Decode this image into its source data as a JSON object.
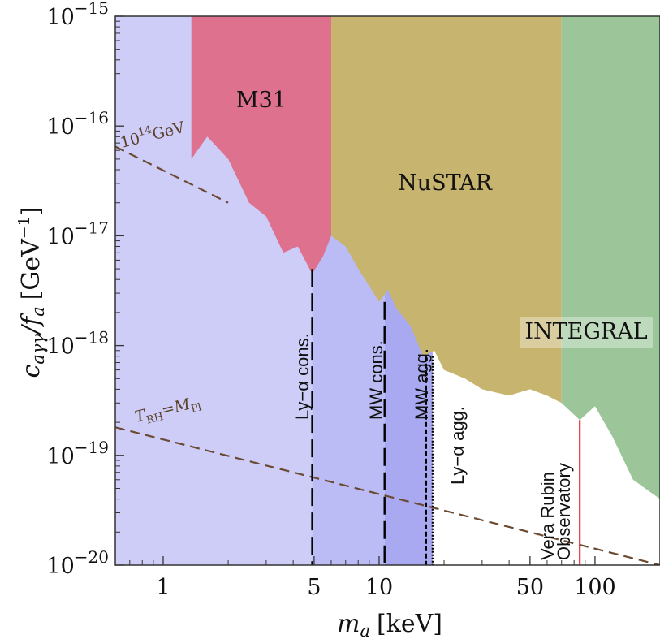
{
  "chart_data": {
    "type": "area",
    "title": "",
    "xlabel_var": "m",
    "xlabel_sub": "a",
    "xlabel_unit": "[keV]",
    "ylabel_var": "c",
    "ylabel_sub": "aγγ",
    "ylabel_den": "/f",
    "ylabel_den_sub": "a",
    "ylabel_unit": "[GeV",
    "ylabel_unit_exp": "−1",
    "ylabel_unit_close": "]",
    "xscale": "log",
    "yscale": "log",
    "xlim": [
      0.6,
      200
    ],
    "ylim": [
      1e-20,
      1e-15
    ],
    "grid": false,
    "x_ticks": [
      {
        "value": 1,
        "label": "1"
      },
      {
        "value": 5,
        "label": "5"
      },
      {
        "value": 10,
        "label": "10"
      },
      {
        "value": 50,
        "label": "50"
      },
      {
        "value": 100,
        "label": "100"
      }
    ],
    "y_ticks": [
      {
        "value": 1e-15,
        "base": "10",
        "exp": "−15"
      },
      {
        "value": 1e-16,
        "base": "10",
        "exp": "−16"
      },
      {
        "value": 1e-17,
        "base": "10",
        "exp": "−17"
      },
      {
        "value": 1e-18,
        "base": "10",
        "exp": "−18"
      },
      {
        "value": 1e-19,
        "base": "10",
        "exp": "−19"
      },
      {
        "value": 1e-20,
        "base": "10",
        "exp": "−20"
      }
    ],
    "regions": [
      {
        "name": "light-blue",
        "color": "#cdcdf8",
        "x_range": [
          0.6,
          4.9
        ]
      },
      {
        "name": "blue-band",
        "color": "#bbbbf6",
        "x_range": [
          4.9,
          10.6
        ]
      },
      {
        "name": "blue-band-dark",
        "color": "#a9a9f2",
        "x_range": [
          10.6,
          17.7
        ]
      },
      {
        "label": "M31",
        "color": "#dd718e",
        "boundary": [
          [
            1.35,
            1e-15
          ],
          [
            1.35,
            5e-17
          ],
          [
            1.6,
            8e-17
          ],
          [
            2.0,
            5e-17
          ],
          [
            2.5,
            2e-17
          ],
          [
            3.0,
            1.5e-17
          ],
          [
            3.6,
            7e-18
          ],
          [
            4.2,
            8e-18
          ],
          [
            4.9,
            4.5e-18
          ],
          [
            5.5,
            6.5e-18
          ],
          [
            6.0,
            1e-17
          ],
          [
            6.0,
            1e-15
          ]
        ]
      },
      {
        "label": "NuSTAR",
        "color": "#c7b46f",
        "boundary": [
          [
            6.0,
            1e-15
          ],
          [
            6.0,
            1e-17
          ],
          [
            7.0,
            8e-18
          ],
          [
            8.0,
            5e-18
          ],
          [
            9.0,
            3.5e-18
          ],
          [
            10.0,
            2.5e-18
          ],
          [
            11.0,
            3.2e-18
          ],
          [
            12.0,
            2.2e-18
          ],
          [
            14.0,
            1.5e-18
          ],
          [
            16.0,
            8e-19
          ],
          [
            18.0,
            9e-19
          ],
          [
            20.0,
            6e-19
          ],
          [
            25.0,
            5e-19
          ],
          [
            30.0,
            4e-19
          ],
          [
            40.0,
            3.5e-19
          ],
          [
            50.0,
            4e-19
          ],
          [
            60.0,
            3.5e-19
          ],
          [
            70.0,
            3e-19
          ],
          [
            70.0,
            1e-15
          ]
        ]
      },
      {
        "label": "INTEGRAL",
        "color": "#9cc69a",
        "boundary": [
          [
            70.0,
            1e-15
          ],
          [
            70.0,
            3e-19
          ],
          [
            85.0,
            2.1e-19
          ],
          [
            100.0,
            2.8e-19
          ],
          [
            120.0,
            1.5e-19
          ],
          [
            150.0,
            6e-20
          ],
          [
            200.0,
            4e-20
          ],
          [
            200.0,
            1e-15
          ]
        ]
      }
    ],
    "vertical_lines": [
      {
        "label": "Ly−α cons.",
        "x": 4.9,
        "y_top": 5e-18,
        "style": "long-dash",
        "color": "#000000"
      },
      {
        "label": "MW cons.",
        "x": 10.6,
        "y_top": 2.5e-18,
        "style": "long-dash",
        "color": "#000000"
      },
      {
        "label": "MW agg.",
        "x": 16.5,
        "y_top": 8e-19,
        "style": "short-dash",
        "color": "#000000"
      },
      {
        "label": "Ly−α agg.",
        "x": 17.7,
        "y_top": 8e-19,
        "style": "dotted",
        "color": "#000000"
      },
      {
        "label": "Vera Rubin Observatory",
        "label_lines": [
          "Vera Rubin",
          "Observatory"
        ],
        "x": 85.0,
        "y_top": 2.1e-19,
        "style": "solid",
        "color": "#e83a3a"
      }
    ],
    "contour_lines": [
      {
        "label_base": "10",
        "label_exp": "14",
        "label_unit": "GeV",
        "color": "#6b4a32",
        "points": [
          [
            0.6,
            6.5e-17
          ],
          [
            2.0,
            2e-17
          ]
        ]
      },
      {
        "label_var": "T",
        "label_sub": "RH",
        "label_rel": "=",
        "label_var2": "M",
        "label_sub2": "Pl",
        "color": "#6b4a32",
        "points": [
          [
            0.6,
            1.8e-19
          ],
          [
            200.0,
            1e-20
          ]
        ]
      }
    ]
  }
}
